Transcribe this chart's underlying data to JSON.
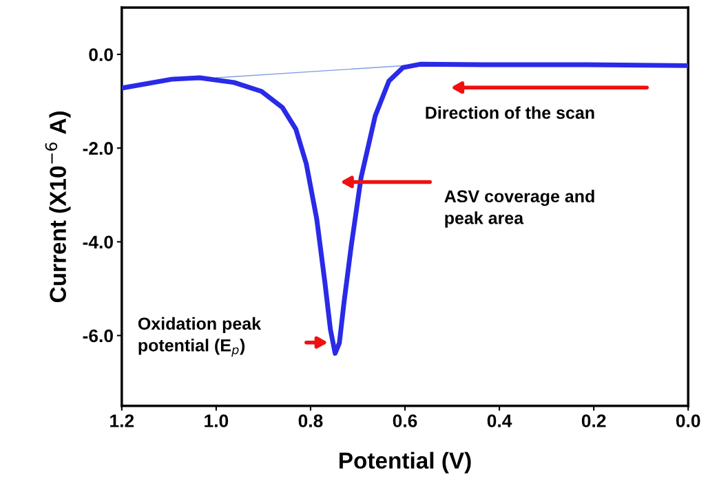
{
  "chart_data": {
    "type": "line",
    "xlabel": "Potential (V)",
    "ylabel": "Current (X10$^{−6}$ A)",
    "xlim": [
      1.2,
      0.0
    ],
    "ylim": [
      -7.5,
      1.0
    ],
    "xticks": [
      {
        "value": 1.2,
        "label": "1.2"
      },
      {
        "value": 1.0,
        "label": "1.0"
      },
      {
        "value": 0.8,
        "label": "0.8"
      },
      {
        "value": 0.6,
        "label": "0.6"
      },
      {
        "value": 0.4,
        "label": "0.4"
      },
      {
        "value": 0.2,
        "label": "0.2"
      },
      {
        "value": 0.0,
        "label": "0.0"
      }
    ],
    "yticks": [
      {
        "value": 0,
        "label": "0.0"
      },
      {
        "value": -2,
        "label": "-2.0"
      },
      {
        "value": -4,
        "label": "-4.0"
      },
      {
        "value": -6,
        "label": "-6.0"
      }
    ],
    "grid": false,
    "series": [
      {
        "color": "#2a2ae8",
        "x": [
          1.2,
          1.094,
          1.035,
          0.962,
          0.904,
          0.86,
          0.831,
          0.809,
          0.787,
          0.77,
          0.758,
          0.748,
          0.739,
          0.729,
          0.714,
          0.693,
          0.663,
          0.634,
          0.604,
          0.568,
          0.436,
          0.217,
          0.0
        ],
        "values": [
          -0.72,
          -0.53,
          -0.5,
          -0.6,
          -0.79,
          -1.13,
          -1.6,
          -2.34,
          -3.51,
          -4.84,
          -5.87,
          -6.38,
          -6.16,
          -5.28,
          -4.1,
          -2.63,
          -1.31,
          -0.57,
          -0.28,
          -0.21,
          -0.22,
          -0.22,
          -0.24
        ]
      },
      {
        "color": "#7f9fe0",
        "x": [
          1.0,
          0.57
        ],
        "values": [
          -0.5,
          -0.22
        ]
      }
    ],
    "annotations": [
      "Direction of the scan",
      "ASV coverage and\npeak area",
      "Oxidation peak\npotential (E$_{p}$)"
    ]
  }
}
